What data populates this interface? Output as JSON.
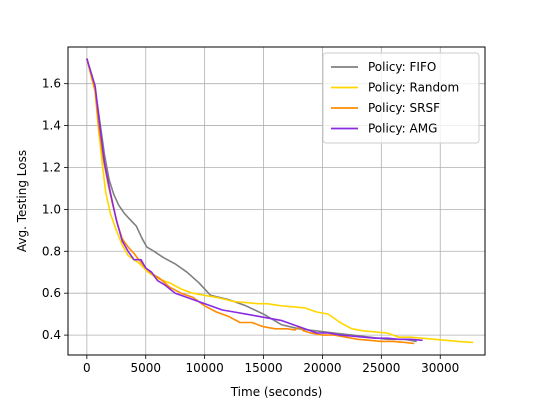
{
  "chart_data": {
    "type": "line",
    "title": "",
    "xlabel": "Time (seconds)",
    "ylabel": "Avg. Testing Loss",
    "xlim": [
      -1600,
      33800
    ],
    "ylim": [
      0.305,
      1.775
    ],
    "xticks": [
      0,
      5000,
      10000,
      15000,
      20000,
      25000,
      30000
    ],
    "xtick_labels": [
      "0",
      "5000",
      "10000",
      "15000",
      "20000",
      "25000",
      "30000"
    ],
    "yticks": [
      0.4,
      0.6,
      0.8,
      1.0,
      1.2,
      1.4,
      1.6
    ],
    "ytick_labels": [
      "0.4",
      "0.6",
      "0.8",
      "1.0",
      "1.2",
      "1.4",
      "1.6"
    ],
    "grid": true,
    "legend_position": "top-right",
    "series": [
      {
        "name": "Policy: FIFO",
        "color": "#808080",
        "x": [
          0,
          700,
          1100,
          1500,
          1900,
          2300,
          2700,
          3200,
          3700,
          4200,
          4700,
          5100,
          5700,
          6500,
          7500,
          8500,
          9500,
          10500,
          12000,
          13500,
          15000,
          16500,
          18000,
          19500,
          21000,
          22500,
          24000,
          25500,
          27000,
          28000
        ],
        "y": [
          1.72,
          1.58,
          1.42,
          1.26,
          1.14,
          1.07,
          1.02,
          0.98,
          0.95,
          0.92,
          0.86,
          0.82,
          0.8,
          0.77,
          0.74,
          0.7,
          0.65,
          0.59,
          0.57,
          0.54,
          0.5,
          0.45,
          0.43,
          0.42,
          0.41,
          0.4,
          0.39,
          0.38,
          0.38,
          0.37
        ]
      },
      {
        "name": "Policy: Random",
        "color": "#FFD700",
        "x": [
          0,
          700,
          1000,
          1300,
          1600,
          2000,
          2500,
          3000,
          3500,
          4000,
          4500,
          5200,
          6000,
          7000,
          8000,
          9000,
          10000,
          11000,
          12500,
          13500,
          14500,
          15300,
          16500,
          17500,
          18500,
          19500,
          20500,
          21500,
          22500,
          23500,
          24500,
          25500,
          26500,
          27500,
          28500,
          29500,
          30500,
          31500,
          32800
        ],
        "y": [
          1.72,
          1.56,
          1.38,
          1.22,
          1.08,
          0.98,
          0.9,
          0.83,
          0.78,
          0.76,
          0.74,
          0.7,
          0.67,
          0.65,
          0.62,
          0.6,
          0.59,
          0.58,
          0.56,
          0.555,
          0.55,
          0.55,
          0.54,
          0.535,
          0.53,
          0.51,
          0.5,
          0.46,
          0.43,
          0.42,
          0.415,
          0.41,
          0.39,
          0.39,
          0.385,
          0.38,
          0.375,
          0.37,
          0.365
        ]
      },
      {
        "name": "Policy: SRSF",
        "color": "#FF8C00",
        "x": [
          0,
          700,
          1000,
          1400,
          1800,
          2200,
          2600,
          3000,
          3500,
          4000,
          4400,
          5000,
          5600,
          6200,
          7000,
          8000,
          9000,
          10000,
          11000,
          12000,
          13000,
          14000,
          15000,
          16000,
          17000,
          17700,
          18000,
          18400,
          19000,
          20000,
          21000,
          22000,
          23000,
          24000,
          25000,
          26000,
          27000,
          27800
        ],
        "y": [
          1.72,
          1.57,
          1.4,
          1.24,
          1.12,
          1.02,
          0.93,
          0.86,
          0.82,
          0.79,
          0.76,
          0.72,
          0.69,
          0.67,
          0.63,
          0.6,
          0.58,
          0.54,
          0.51,
          0.49,
          0.46,
          0.46,
          0.44,
          0.43,
          0.43,
          0.425,
          0.44,
          0.42,
          0.41,
          0.4,
          0.4,
          0.39,
          0.38,
          0.375,
          0.37,
          0.37,
          0.365,
          0.36
        ]
      },
      {
        "name": "Policy: AMG",
        "color": "#8A2BE2",
        "x": [
          0,
          700,
          1100,
          1500,
          2000,
          2500,
          3000,
          3500,
          4000,
          4600,
          5000,
          5500,
          6000,
          6600,
          7500,
          8500,
          9500,
          10500,
          11500,
          12500,
          13500,
          14500,
          15500,
          16500,
          17500,
          18500,
          19500,
          20500,
          21500,
          22500,
          23500,
          24500,
          25500,
          26500,
          27500,
          28500
        ],
        "y": [
          1.72,
          1.59,
          1.4,
          1.22,
          1.08,
          0.95,
          0.85,
          0.8,
          0.76,
          0.76,
          0.72,
          0.7,
          0.66,
          0.64,
          0.6,
          0.58,
          0.56,
          0.54,
          0.52,
          0.51,
          0.5,
          0.49,
          0.48,
          0.47,
          0.45,
          0.43,
          0.41,
          0.41,
          0.4,
          0.395,
          0.39,
          0.385,
          0.385,
          0.38,
          0.38,
          0.375
        ]
      }
    ]
  }
}
